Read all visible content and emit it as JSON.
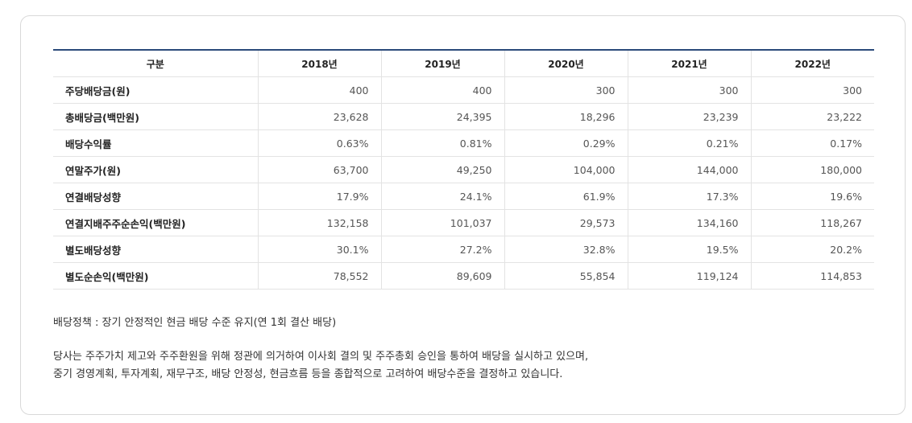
{
  "table": {
    "headers": [
      "구분",
      "2018년",
      "2019년",
      "2020년",
      "2021년",
      "2022년"
    ],
    "rows": [
      {
        "label": "주당배당금(원)",
        "values": [
          "400",
          "400",
          "300",
          "300",
          "300"
        ]
      },
      {
        "label": "총배당금(백만원)",
        "values": [
          "23,628",
          "24,395",
          "18,296",
          "23,239",
          "23,222"
        ]
      },
      {
        "label": "배당수익률",
        "values": [
          "0.63%",
          "0.81%",
          "0.29%",
          "0.21%",
          "0.17%"
        ]
      },
      {
        "label": "연말주가(원)",
        "values": [
          "63,700",
          "49,250",
          "104,000",
          "144,000",
          "180,000"
        ]
      },
      {
        "label": "연결배당성향",
        "values": [
          "17.9%",
          "24.1%",
          "61.9%",
          "17.3%",
          "19.6%"
        ]
      },
      {
        "label": "연결지배주주순손익(백만원)",
        "values": [
          "132,158",
          "101,037",
          "29,573",
          "134,160",
          "118,267"
        ]
      },
      {
        "label": "별도배당성향",
        "values": [
          "30.1%",
          "27.2%",
          "32.8%",
          "19.5%",
          "20.2%"
        ]
      },
      {
        "label": "별도순손익(백만원)",
        "values": [
          "78,552",
          "89,609",
          "55,854",
          "119,124",
          "114,853"
        ]
      }
    ]
  },
  "policy": "배당정책 : 장기 안정적인 현금 배당 수준 유지(연 1회 결산 배당)",
  "description": {
    "line1": "당사는 주주가치 제고와 주주환원을 위해 정관에 의거하여 이사회 결의 및 주주총회 승인을 통하여 배당을 실시하고 있으며,",
    "line2": "중기 경영계획, 투자계획, 재무구조, 배당 안정성, 현금흐름 등을 종합적으로 고려하여 배당수준을 결정하고 있습니다."
  }
}
